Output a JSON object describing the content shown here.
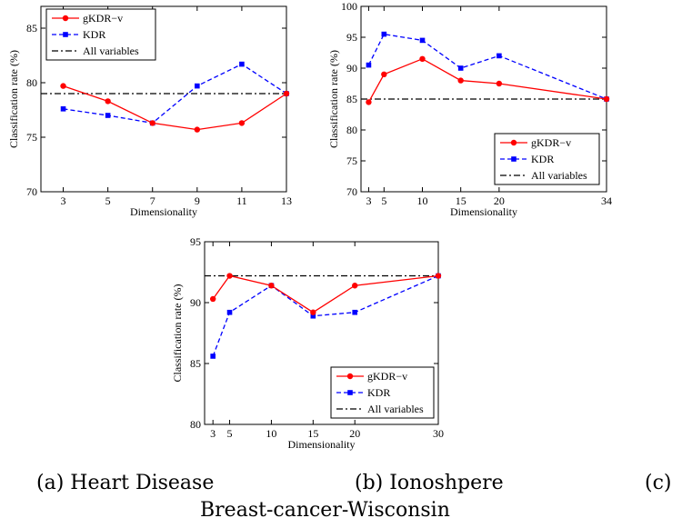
{
  "chart_data": [
    {
      "type": "line",
      "title": "",
      "xlabel": "Dimensionality",
      "ylabel": "Classification rate (%)",
      "xlim": [
        2,
        13
      ],
      "ylim": [
        70,
        87
      ],
      "xticks": [
        3,
        5,
        7,
        9,
        11,
        13
      ],
      "yticks": [
        70,
        75,
        80,
        85
      ],
      "legend_position": "top-left",
      "series": [
        {
          "name": "gKDR−v",
          "color": "#ff0000",
          "style": "solid",
          "marker": "circle",
          "x": [
            3,
            5,
            7,
            9,
            11,
            13
          ],
          "values": [
            79.7,
            78.3,
            76.3,
            75.7,
            76.3,
            79.0
          ]
        },
        {
          "name": "KDR",
          "color": "#0000ff",
          "style": "dashed",
          "marker": "square",
          "x": [
            3,
            5,
            7,
            9,
            11,
            13
          ],
          "values": [
            77.6,
            77.0,
            76.3,
            79.7,
            81.7,
            79.0
          ]
        },
        {
          "name": "All variables",
          "color": "#000000",
          "style": "dashdot",
          "marker": "none",
          "x": [
            2,
            13
          ],
          "values": [
            79.0,
            79.0
          ]
        }
      ]
    },
    {
      "type": "line",
      "title": "",
      "xlabel": "Dimensionality",
      "ylabel": "Classification rate (%)",
      "xlim": [
        2,
        34
      ],
      "ylim": [
        70,
        100
      ],
      "xticks": [
        3,
        5,
        10,
        15,
        20,
        34
      ],
      "yticks": [
        70,
        75,
        80,
        85,
        90,
        95,
        100
      ],
      "legend_position": "bottom-right",
      "series": [
        {
          "name": "gKDR−v",
          "color": "#ff0000",
          "style": "solid",
          "marker": "circle",
          "x": [
            3,
            5,
            10,
            15,
            20,
            34
          ],
          "values": [
            84.5,
            89.0,
            91.5,
            88.0,
            87.5,
            85.0
          ]
        },
        {
          "name": "KDR",
          "color": "#0000ff",
          "style": "dashed",
          "marker": "square",
          "x": [
            3,
            5,
            10,
            15,
            20,
            34
          ],
          "values": [
            90.5,
            95.5,
            94.5,
            90.0,
            92.0,
            85.0
          ]
        },
        {
          "name": "All variables",
          "color": "#000000",
          "style": "dashdot",
          "marker": "none",
          "x": [
            2,
            34
          ],
          "values": [
            85.0,
            85.0
          ]
        }
      ]
    },
    {
      "type": "line",
      "title": "",
      "xlabel": "Dimensionality",
      "ylabel": "Classification rate (%)",
      "xlim": [
        2,
        30
      ],
      "ylim": [
        80,
        95
      ],
      "xticks": [
        3,
        5,
        10,
        15,
        20,
        30
      ],
      "yticks": [
        80,
        85,
        90,
        95
      ],
      "legend_position": "bottom-right",
      "series": [
        {
          "name": "gKDR−v",
          "color": "#ff0000",
          "style": "solid",
          "marker": "circle",
          "x": [
            3,
            5,
            10,
            15,
            20,
            30
          ],
          "values": [
            90.3,
            92.2,
            91.4,
            89.2,
            91.4,
            92.2
          ]
        },
        {
          "name": "KDR",
          "color": "#0000ff",
          "style": "dashed",
          "marker": "square",
          "x": [
            3,
            5,
            10,
            15,
            20,
            30
          ],
          "values": [
            85.6,
            89.2,
            91.4,
            88.9,
            89.2,
            92.2
          ]
        },
        {
          "name": "All variables",
          "color": "#000000",
          "style": "dashdot",
          "marker": "none",
          "x": [
            2,
            30
          ],
          "values": [
            92.2,
            92.2
          ]
        }
      ]
    }
  ],
  "captions": {
    "a": "(a) Heart Disease",
    "b": "(b) Ionoshpere",
    "c": "(c)",
    "c_cont": "Breast-cancer-Wisconsin"
  }
}
